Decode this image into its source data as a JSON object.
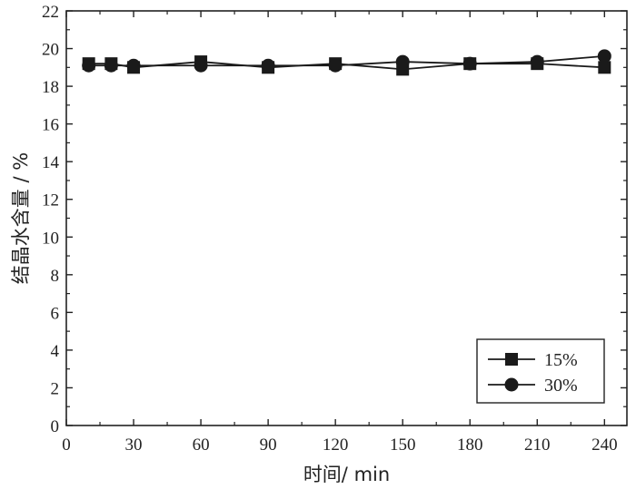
{
  "chart_data": {
    "type": "line",
    "xlabel": "时间/ min",
    "ylabel": "结晶水含量 / %",
    "xlim": [
      0,
      250
    ],
    "ylim": [
      0,
      22
    ],
    "xticks": [
      0,
      30,
      60,
      90,
      120,
      150,
      180,
      210,
      240
    ],
    "yticks": [
      0,
      2,
      4,
      6,
      8,
      10,
      12,
      14,
      16,
      18,
      20,
      22
    ],
    "grid": false,
    "legend_position": "bottom-right",
    "series": [
      {
        "name": "15%",
        "marker": "square",
        "x": [
          10,
          20,
          30,
          60,
          90,
          120,
          150,
          180,
          210,
          240
        ],
        "y": [
          19.2,
          19.2,
          19.0,
          19.3,
          19.0,
          19.2,
          18.9,
          19.2,
          19.2,
          19.0
        ]
      },
      {
        "name": "30%",
        "marker": "circle",
        "x": [
          10,
          20,
          30,
          60,
          90,
          120,
          150,
          180,
          210,
          240
        ],
        "y": [
          19.1,
          19.1,
          19.1,
          19.1,
          19.1,
          19.1,
          19.3,
          19.2,
          19.3,
          19.6
        ]
      }
    ]
  }
}
